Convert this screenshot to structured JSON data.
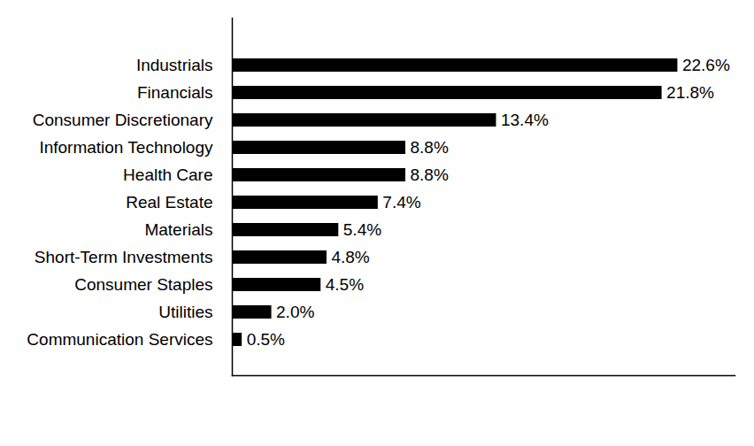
{
  "chart_data": {
    "type": "bar",
    "orientation": "horizontal",
    "categories": [
      "Industrials",
      "Financials",
      "Consumer Discretionary",
      "Information Technology",
      "Health Care",
      "Real Estate",
      "Materials",
      "Short-Term Investments",
      "Consumer Staples",
      "Utilities",
      "Communication Services"
    ],
    "values": [
      22.6,
      21.8,
      13.4,
      8.8,
      8.8,
      7.4,
      5.4,
      4.8,
      4.5,
      2.0,
      0.5
    ],
    "value_labels": [
      "22.6%",
      "21.8%",
      "13.4%",
      "8.8%",
      "8.8%",
      "7.4%",
      "5.4%",
      "4.8%",
      "4.5%",
      "2.0%",
      "0.5%"
    ],
    "color": "#000000",
    "xlim": [
      0,
      25.5
    ],
    "xticks": [],
    "grid": false,
    "data_labels": true,
    "tick_labels": "y"
  }
}
